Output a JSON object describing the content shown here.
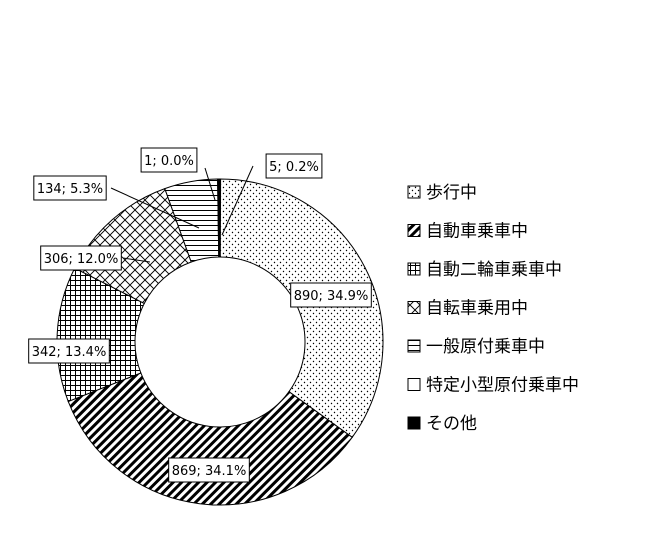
{
  "chart_data": {
    "type": "pie",
    "donut": true,
    "categories": [
      "歩行中",
      "自動車乗車中",
      "自動二輪車乗車中",
      "自転車乗用中",
      "一般原付乗車中",
      "特定小型原付乗車中",
      "その他"
    ],
    "values": [
      890,
      869,
      342,
      306,
      134,
      1,
      5
    ],
    "percents": [
      "34.9%",
      "34.1%",
      "13.4%",
      "12.0%",
      "5.3%",
      "0.0%",
      "0.2%"
    ],
    "data_labels": [
      "890; 34.9%",
      "869; 34.1%",
      "342; 13.4%",
      "306; 12.0%",
      "134; 5.3%",
      "1; 0.0%",
      "5; 0.2%"
    ],
    "patterns": [
      "dots",
      "diagonal-dense",
      "grid",
      "diamond",
      "horizontal",
      "none",
      "solid"
    ],
    "legend_position": "right",
    "colors": {
      "line": "#000000",
      "background": "#ffffff"
    }
  }
}
